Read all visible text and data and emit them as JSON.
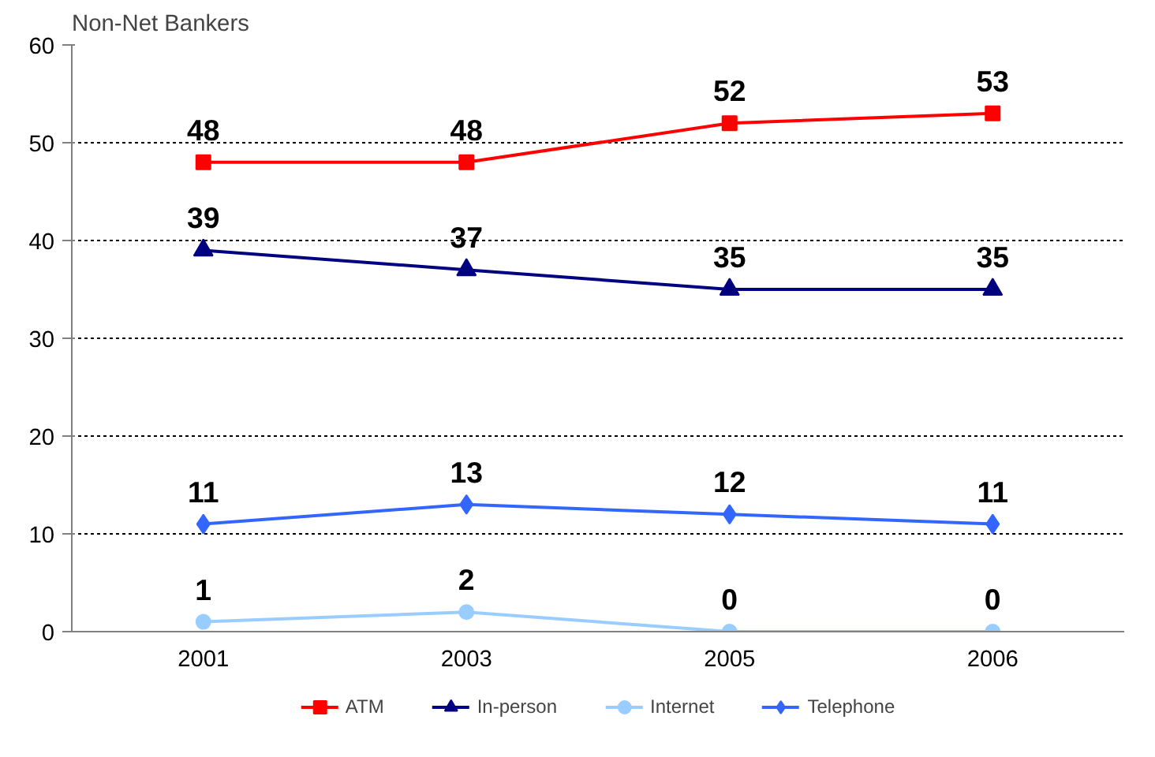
{
  "chart_data": {
    "type": "line",
    "ylabel": "Non-Net Bankers",
    "categories": [
      "2001",
      "2003",
      "2005",
      "2006"
    ],
    "series": [
      {
        "name": "ATM",
        "color": "#ff0000",
        "marker": "square",
        "values": [
          48,
          48,
          52,
          53
        ]
      },
      {
        "name": "In-person",
        "color": "#000080",
        "marker": "triangle",
        "values": [
          39,
          37,
          35,
          35
        ]
      },
      {
        "name": "Internet",
        "color": "#99ccff",
        "marker": "circle",
        "values": [
          1,
          2,
          0,
          0
        ]
      },
      {
        "name": "Telephone",
        "color": "#3366ff",
        "marker": "diamond",
        "values": [
          11,
          13,
          12,
          11
        ]
      }
    ],
    "ylim": [
      0,
      60
    ],
    "yticks": [
      0,
      10,
      20,
      30,
      40,
      50,
      60
    ],
    "grid": "y",
    "legend": "bottom",
    "data_labels": true,
    "line_style": "solid"
  }
}
